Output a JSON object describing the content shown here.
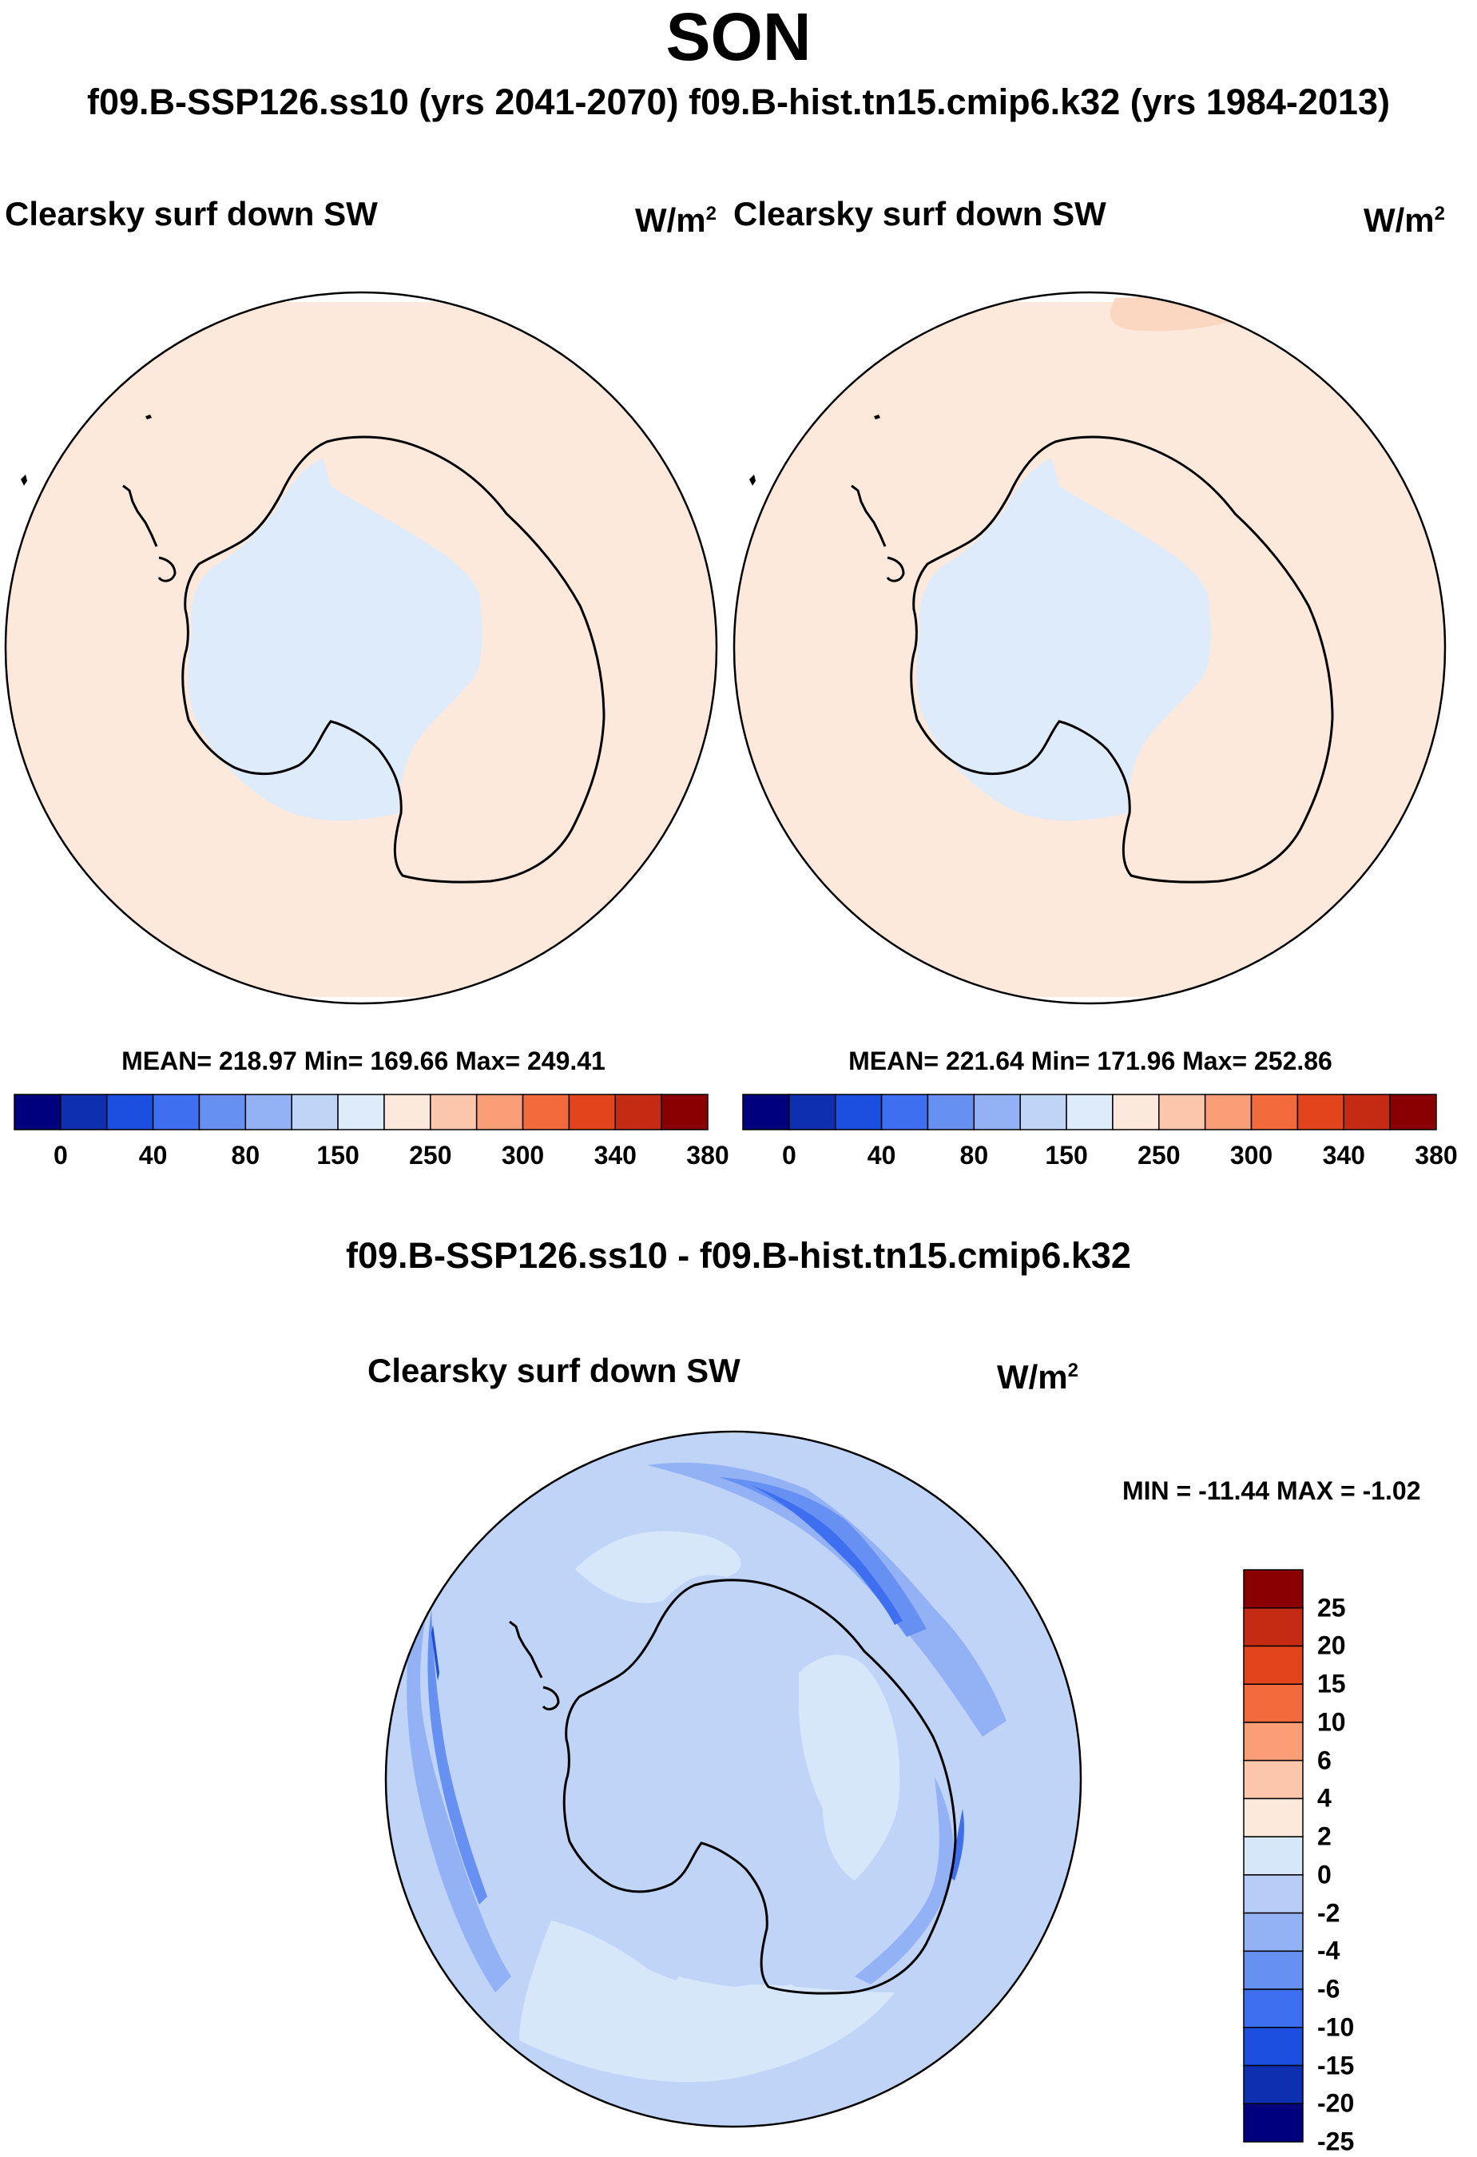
{
  "title": "SON",
  "subtitle": "f09.B-SSP126.ss10 (yrs 2041-2070)  f09.B-hist.tn15.cmip6.k32 (yrs 1984-2013)",
  "colors": {
    "abs_scale": [
      "#00007f",
      "#0d2fb0",
      "#1c4ee0",
      "#3d6ff0",
      "#6690f2",
      "#93b1f5",
      "#c0d4f7",
      "#deebfa",
      "#fde9dc",
      "#fbc6aa",
      "#f99e77",
      "#f36a3c",
      "#e3441b",
      "#c52a12",
      "#8a0000"
    ],
    "diff_scale": [
      "#00007f",
      "#0d2fb0",
      "#1c4ee0",
      "#3d6ff0",
      "#6690f2",
      "#93b1f5",
      "#b7cdf7",
      "#d6e7fa",
      "#fde9dc",
      "#fbc6aa",
      "#f99e77",
      "#f36a3c",
      "#e3441b",
      "#c52a12",
      "#8a0000"
    ],
    "ocean_abs": "#fde9dc",
    "interior_abs": "#deebfa",
    "diff_base": "#c0d4f7"
  },
  "panels": [
    {
      "variable": "Clearsky surf down SW",
      "units": "W/m",
      "units_exp": "2",
      "stats": "MEAN= 218.97  Min= 169.66  Max= 249.41",
      "colorbar_labels": [
        "0",
        "40",
        "80",
        "150",
        "250",
        "300",
        "340",
        "380"
      ]
    },
    {
      "variable": "Clearsky surf down SW",
      "units": "W/m",
      "units_exp": "2",
      "stats": "MEAN= 221.64  Min= 171.96  Max= 252.86",
      "colorbar_labels": [
        "0",
        "40",
        "80",
        "150",
        "250",
        "300",
        "340",
        "380"
      ]
    }
  ],
  "difference": {
    "title": "f09.B-SSP126.ss10 - f09.B-hist.tn15.cmip6.k32",
    "variable": "Clearsky surf down SW",
    "units": "W/m",
    "units_exp": "2",
    "stats": "MIN = -11.44 MAX =  -1.02",
    "colorbar_labels": [
      "25",
      "20",
      "15",
      "10",
      "6",
      "4",
      "2",
      "0",
      "-2",
      "-4",
      "-6",
      "-10",
      "-15",
      "-20",
      "-25"
    ]
  }
}
